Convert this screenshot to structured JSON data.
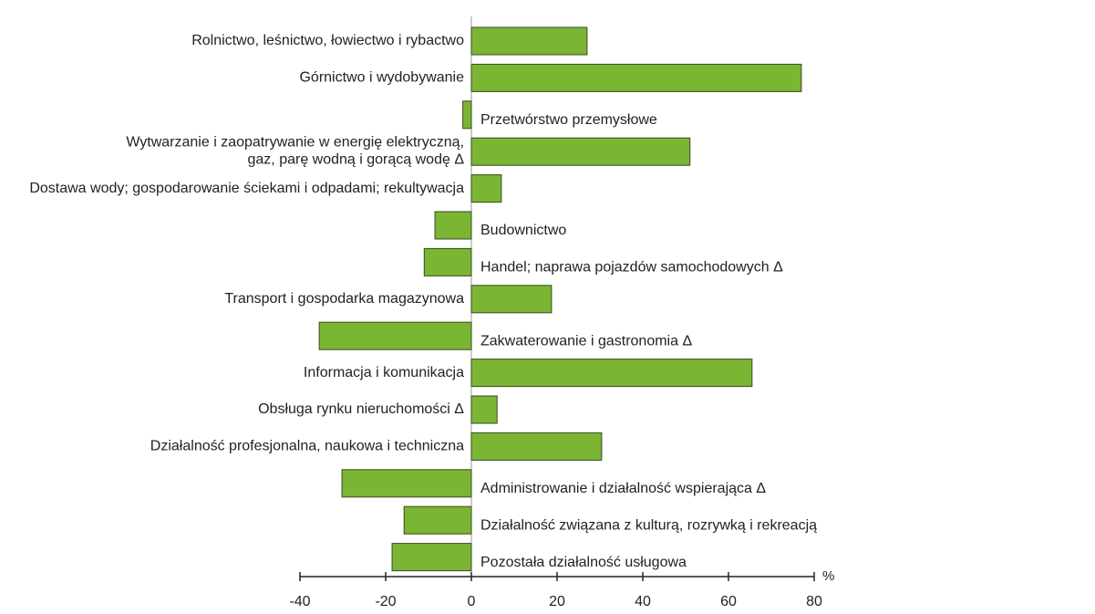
{
  "chart_data": {
    "type": "bar",
    "orientation": "horizontal",
    "categories": [
      "Rolnictwo, leśnictwo, łowiectwo i rybactwo",
      "Górnictwo i wydobywanie",
      "Przetwórstwo przemysłowe",
      "Wytwarzanie i zaopatrywanie w energię elektryczną,\ngaz, parę wodną i gorącą wodę Δ",
      "Dostawa wody; gospodarowanie ściekami i odpadami; rekultywacja",
      "Budownictwo",
      "Handel; naprawa pojazdów samochodowych Δ",
      "Transport i gospodarka magazynowa",
      "Zakwaterowanie i gastronomia Δ",
      "Informacja i komunikacja",
      "Obsługa rynku nieruchomości Δ",
      "Działalność profesjonalna, naukowa i techniczna",
      "Administrowanie i działalność wspierająca Δ",
      "Działalność związana z kulturą, rozrywką i rekreacją",
      "Pozostała działalność usługowa"
    ],
    "values": [
      27,
      77,
      -2,
      51,
      7,
      -8.5,
      -11,
      18.7,
      -35.5,
      65.5,
      6,
      30.4,
      -30.2,
      -15.7,
      -18.5
    ],
    "color": "#7ab534",
    "xlim": [
      -40,
      80
    ],
    "xticks": [
      -40,
      -20,
      0,
      20,
      40,
      60,
      80
    ],
    "x_unit": "%"
  }
}
